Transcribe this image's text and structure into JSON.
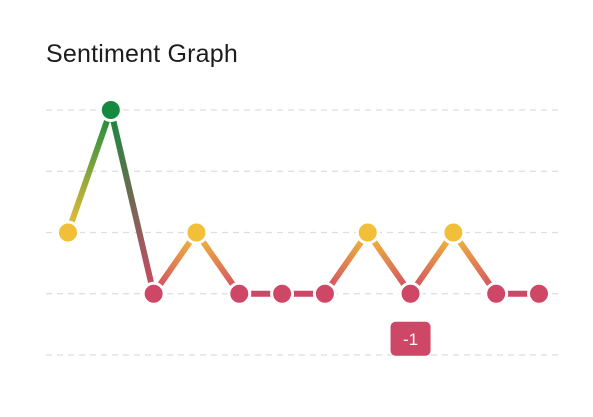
{
  "chart_data": {
    "type": "line",
    "title": "Sentiment Graph",
    "xlabel": "",
    "ylabel": "",
    "ylim": [
      -2,
      2
    ],
    "grid": true,
    "grid_values": [
      -2,
      -1,
      0,
      1,
      2
    ],
    "x": [
      1,
      2,
      3,
      4,
      5,
      6,
      7,
      8,
      9,
      10,
      11,
      12
    ],
    "values": [
      0,
      2,
      -1,
      0,
      -1,
      -1,
      -1,
      0,
      -1,
      0,
      -1,
      -1
    ],
    "annotation": {
      "index": 8,
      "label": "-1"
    },
    "colors": {
      "positive": "#158a3e",
      "neutral": "#f2bf38",
      "negative": "#cf4767",
      "grid": "#dddddd",
      "title": "#1d1d1d"
    }
  }
}
